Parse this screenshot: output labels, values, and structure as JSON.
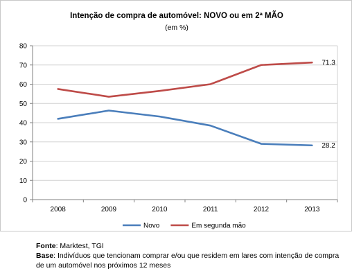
{
  "chart_data": {
    "type": "line",
    "title": "Intenção de compra  de automóvel: NOVO ou em 2ª MÃO",
    "subtitle": "(em %)",
    "x": [
      "2008",
      "2009",
      "2010",
      "2011",
      "2012",
      "2013"
    ],
    "ylim": [
      0,
      80
    ],
    "yticks": [
      "0",
      "10",
      "20",
      "30",
      "40",
      "50",
      "60",
      "70",
      "80"
    ],
    "grid": true,
    "legend_position": "bottom",
    "series": [
      {
        "name": "Novo",
        "color": "#4a7ebb",
        "values": [
          42,
          46.3,
          43.2,
          38.5,
          29,
          28.2
        ],
        "end_label": "28.2"
      },
      {
        "name": "Em segunda mão",
        "color": "#be4b48",
        "values": [
          57.5,
          53.5,
          56.5,
          60,
          70,
          71.3
        ],
        "end_label": "71.3"
      }
    ]
  },
  "footer": {
    "source_label": "Fonte",
    "source_text": ": Marktest, TGI",
    "base_label": "Base",
    "base_text": ": Indivíduos que tencionam comprar e/ou que residem em lares com intenção de compra de um automóvel nos próximos 12 meses"
  }
}
